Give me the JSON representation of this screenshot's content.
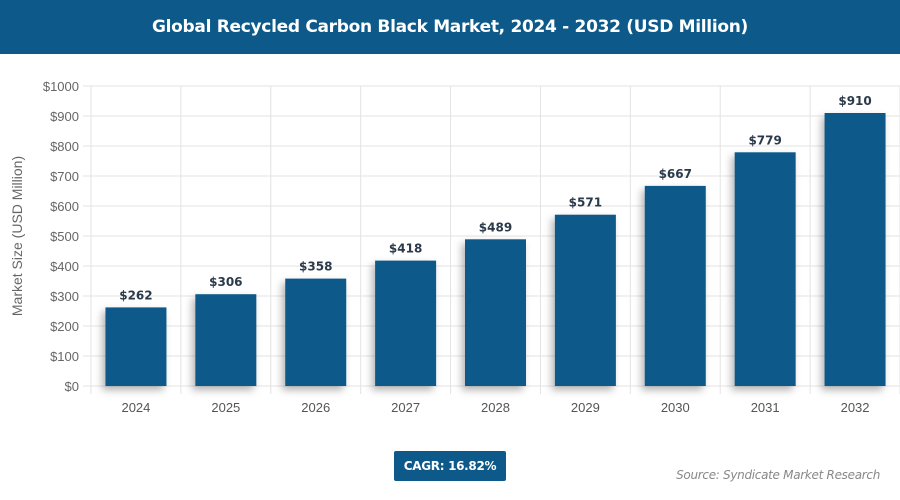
{
  "header": {
    "title": "Global Recycled Carbon Black Market, 2024 - 2032 (USD Million)"
  },
  "chart_data": {
    "type": "bar",
    "title": "Global Recycled Carbon Black Market, 2024 - 2032 (USD Million)",
    "categories": [
      "2024",
      "2025",
      "2026",
      "2027",
      "2028",
      "2029",
      "2030",
      "2031",
      "2032"
    ],
    "values": [
      262,
      306,
      358,
      418,
      489,
      571,
      667,
      779,
      910
    ],
    "data_labels": [
      "$262",
      "$306",
      "$358",
      "$418",
      "$489",
      "$571",
      "$667",
      "$779",
      "$910"
    ],
    "xlabel": "",
    "ylabel": "Market Size (USD Million)",
    "ylim": [
      0,
      1000
    ],
    "yticks": [
      "$0",
      "$100",
      "$200",
      "$300",
      "$400",
      "$500",
      "$600",
      "$700",
      "$800",
      "$900",
      "$1000"
    ],
    "grid": true,
    "bar_color": "#0d5a8a"
  },
  "footer": {
    "cagr": "CAGR: 16.82%",
    "source": "Source: Syndicate Market Research"
  }
}
